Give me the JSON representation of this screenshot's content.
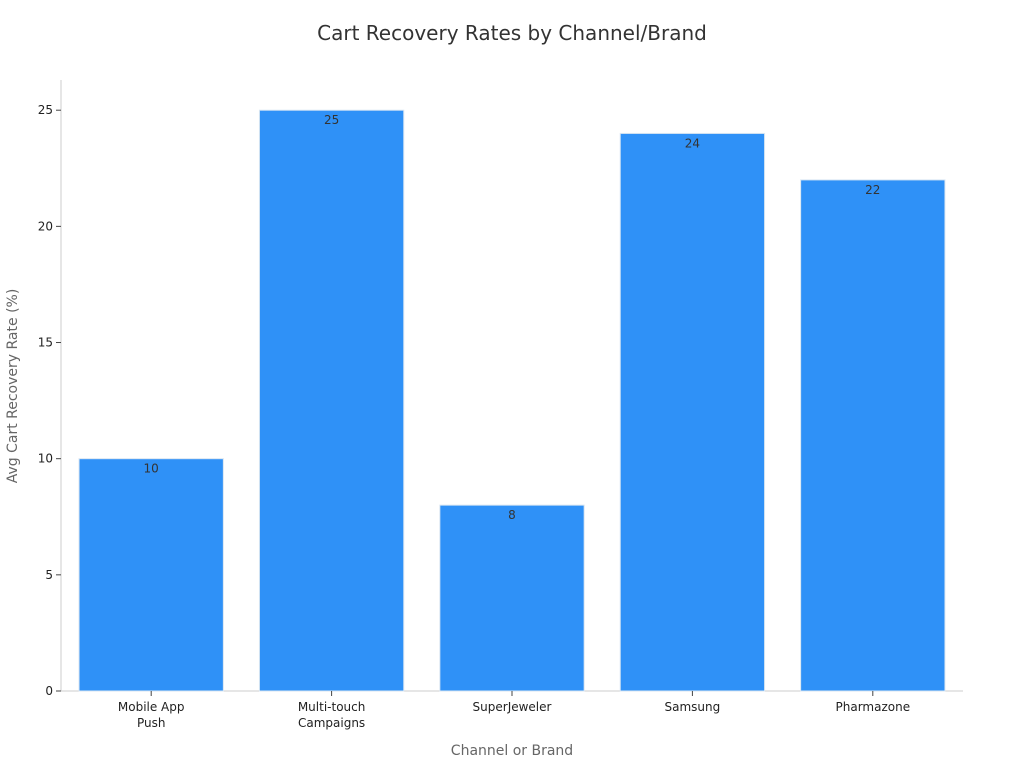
{
  "chart_data": {
    "type": "bar",
    "title": "Cart Recovery Rates by Channel/Brand",
    "xlabel": "Channel or Brand",
    "ylabel": "Avg Cart Recovery Rate (%)",
    "categories": [
      [
        "Mobile App",
        "Push"
      ],
      [
        "Multi-touch",
        "Campaigns"
      ],
      [
        "SuperJeweler"
      ],
      [
        "Samsung"
      ],
      [
        "Pharmazone"
      ]
    ],
    "values": [
      10,
      25,
      8,
      24,
      22
    ],
    "ylim": [
      0,
      26.3
    ],
    "yticks": [
      0,
      5,
      10,
      15,
      20,
      25
    ],
    "grid": false,
    "bar_color": "#2f91f7",
    "bar_edge_color": "#d9e6f2"
  }
}
